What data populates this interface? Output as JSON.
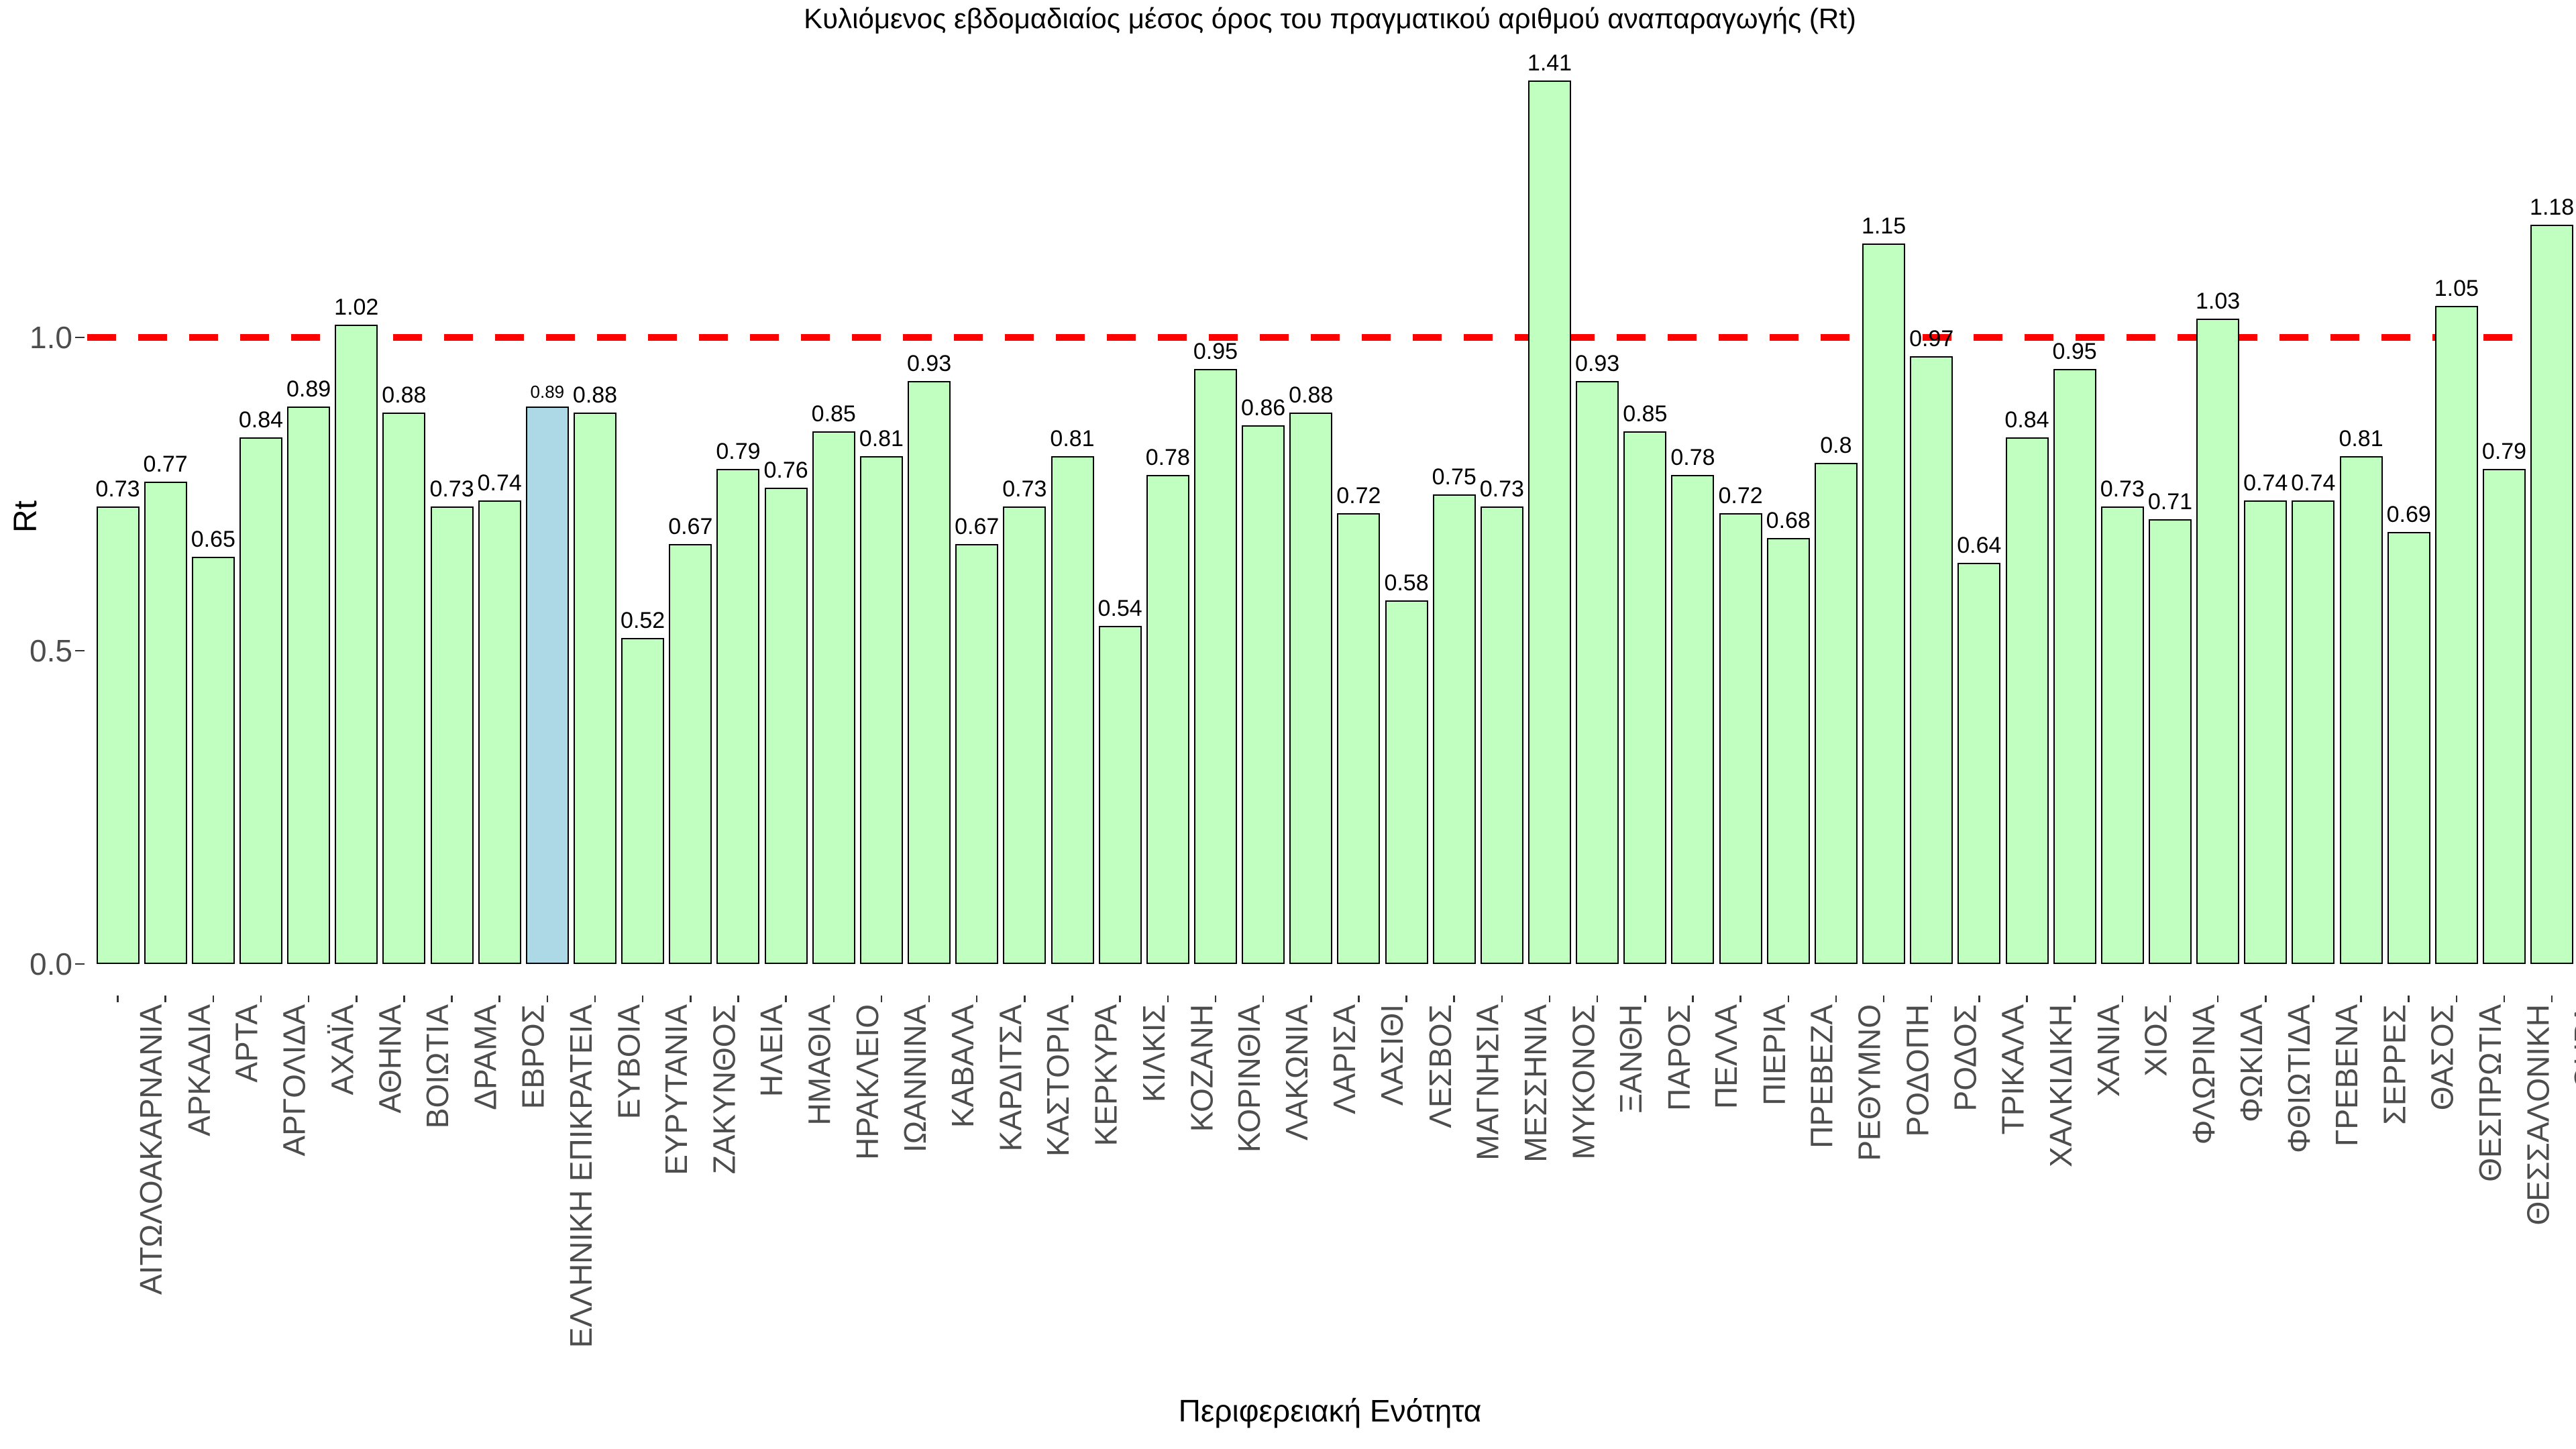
{
  "chart_data": {
    "type": "bar",
    "title": "Κυλιόμενος εβδομαδιαίος μέσος όρος του πραγματικού αριθμού αναπαραγωγής (Rt)",
    "xlabel": "Περιφερειακή Ενότητα",
    "ylabel": "Rt",
    "categories": [
      "ΑΙΤΩΛΟΑΚΑΡΝΑΝΙΑ",
      "ΑΡΚΑΔΙΑ",
      "ΑΡΤΑ",
      "ΑΡΓΟΛΙΔΑ",
      "ΑΧΑΪΑ",
      "ΑΘΗΝΑ",
      "ΒΟΙΩΤΙΑ",
      "ΔΡΑΜΑ",
      "ΕΒΡΟΣ",
      "ΕΛΛΗΝΙΚΗ ΕΠΙΚΡΑΤΕΙΑ",
      "ΕΥΒΟΙΑ",
      "ΕΥΡΥΤΑΝΙΑ",
      "ΖΑΚΥΝΘΟΣ",
      "ΗΛΕΙΑ",
      "ΗΜΑΘΙΑ",
      "ΗΡΑΚΛΕΙΟ",
      "ΙΩΑΝΝΙΝΑ",
      "ΚΑΒΑΛΑ",
      "ΚΑΡΔΙΤΣΑ",
      "ΚΑΣΤΟΡΙΑ",
      "ΚΕΡΚΥΡΑ",
      "ΚΙΛΚΙΣ",
      "ΚΟΖΑΝΗ",
      "ΚΟΡΙΝΘΙΑ",
      "ΛΑΚΩΝΙΑ",
      "ΛΑΡΙΣΑ",
      "ΛΑΣΙΘΙ",
      "ΛΕΣΒΟΣ",
      "ΜΑΓΝΗΣΙΑ",
      "ΜΕΣΣΗΝΙΑ",
      "ΜΥΚΟΝΟΣ",
      "ΞΑΝΘΗ",
      "ΠΑΡΟΣ",
      "ΠΕΛΛΑ",
      "ΠΙΕΡΙΑ",
      "ΠΡΕΒΕΖΑ",
      "ΡΕΘΥΜΝΟ",
      "ΡΟΔΟΠΗ",
      "ΡΟΔΟΣ",
      "ΤΡΙΚΑΛΑ",
      "ΧΑΛΚΙΔΙΚΗ",
      "ΧΑΝΙΑ",
      "ΧΙΟΣ",
      "ΦΛΩΡΙΝΑ",
      "ΦΩΚΙΔΑ",
      "ΦΘΙΩΤΙΔΑ",
      "ΓΡΕΒΕΝΑ",
      "ΣΕΡΡΕΣ",
      "ΘΑΣΟΣ",
      "ΘΕΣΠΡΩΤΙΑ",
      "ΘΕΣΣΑΛΟΝΙΚΗ",
      "ΘΗΡΑ"
    ],
    "values": [
      0.73,
      0.77,
      0.65,
      0.84,
      0.89,
      1.02,
      0.88,
      0.73,
      0.74,
      0.89,
      0.88,
      0.52,
      0.67,
      0.79,
      0.76,
      0.85,
      0.81,
      0.93,
      0.67,
      0.73,
      0.81,
      0.54,
      0.78,
      0.95,
      0.86,
      0.88,
      0.72,
      0.58,
      0.75,
      0.73,
      1.41,
      0.93,
      0.85,
      0.78,
      0.72,
      0.68,
      0.8,
      1.15,
      0.97,
      0.64,
      0.84,
      0.95,
      0.73,
      0.71,
      1.03,
      0.74,
      0.74,
      0.81,
      0.69,
      1.05,
      0.79,
      1.18
    ],
    "highlight_category": "ΕΛΛΗΝΙΚΗ ΕΠΙΚΡΑΤΕΙΑ",
    "y_ticks": [
      {
        "label": "0.0",
        "value": 0.0
      },
      {
        "label": "0.5",
        "value": 0.5
      },
      {
        "label": "1.0",
        "value": 1.0
      }
    ],
    "ylim": [
      0.0,
      1.45
    ],
    "reference_line": {
      "value": 1.0,
      "style": "dashed",
      "color": "#FF0000"
    },
    "grid": false,
    "legend": "none",
    "colors": {
      "bar_fill": "#C1FFC1",
      "highlight_fill": "#ADD8E6",
      "bar_stroke": "#000000",
      "axis_text": "#4D4D4D",
      "value_label_text": "#000000"
    }
  }
}
